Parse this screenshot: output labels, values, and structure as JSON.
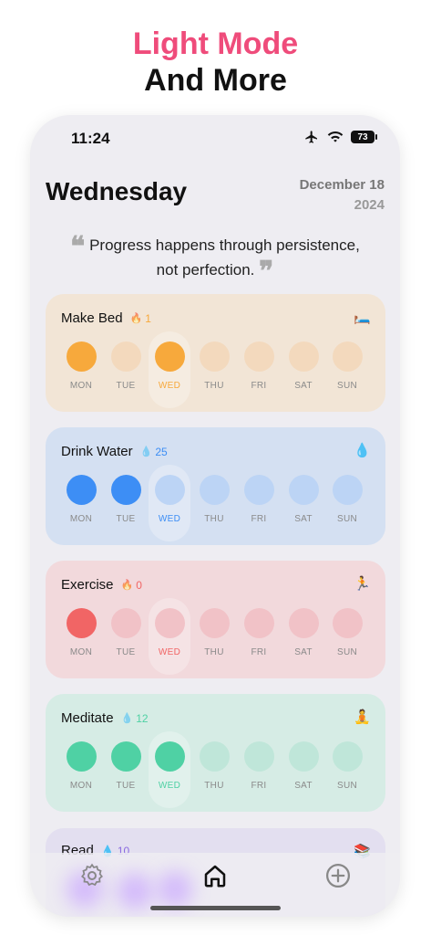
{
  "headline": {
    "line1": "Light Mode",
    "line2": "And More"
  },
  "status": {
    "time": "11:24",
    "battery": "73"
  },
  "header": {
    "day": "Wednesday",
    "date": "December 18",
    "year": "2024"
  },
  "quote": {
    "text": "Progress happens through persistence, not perfection."
  },
  "days": [
    "MON",
    "TUE",
    "WED",
    "THU",
    "FRI",
    "SAT",
    "SUN"
  ],
  "habits": [
    {
      "name": "Make Bed",
      "streak": "1",
      "emoji": "🛏️",
      "accent": "#f7a93c",
      "bg": "#f2e5d6",
      "pale": "#f3d9bd",
      "done": [
        true,
        false,
        true,
        false,
        false,
        false,
        false
      ]
    },
    {
      "name": "Drink Water",
      "streak": "25",
      "emoji": "💧",
      "accent": "#3d8ef5",
      "bg": "#d4e0f2",
      "pale": "#bcd4f5",
      "done": [
        true,
        true,
        false,
        false,
        false,
        false,
        false
      ]
    },
    {
      "name": "Exercise",
      "streak": "0",
      "emoji": "🏃",
      "accent": "#f16565",
      "bg": "#f2d9dc",
      "pale": "#f1c2c7",
      "done": [
        true,
        false,
        false,
        false,
        false,
        false,
        false
      ]
    },
    {
      "name": "Meditate",
      "streak": "12",
      "emoji": "🧘",
      "accent": "#4fd1a4",
      "bg": "#d6ece5",
      "pale": "#bfe6d9",
      "done": [
        true,
        true,
        true,
        false,
        false,
        false,
        false
      ]
    }
  ],
  "partial_card": {
    "name": "Read",
    "streak": "10",
    "emoji": "📚"
  },
  "tabs": [
    {
      "name": "settings",
      "icon": "gear-icon"
    },
    {
      "name": "home",
      "icon": "home-icon"
    },
    {
      "name": "add",
      "icon": "plus-circle-icon"
    }
  ]
}
